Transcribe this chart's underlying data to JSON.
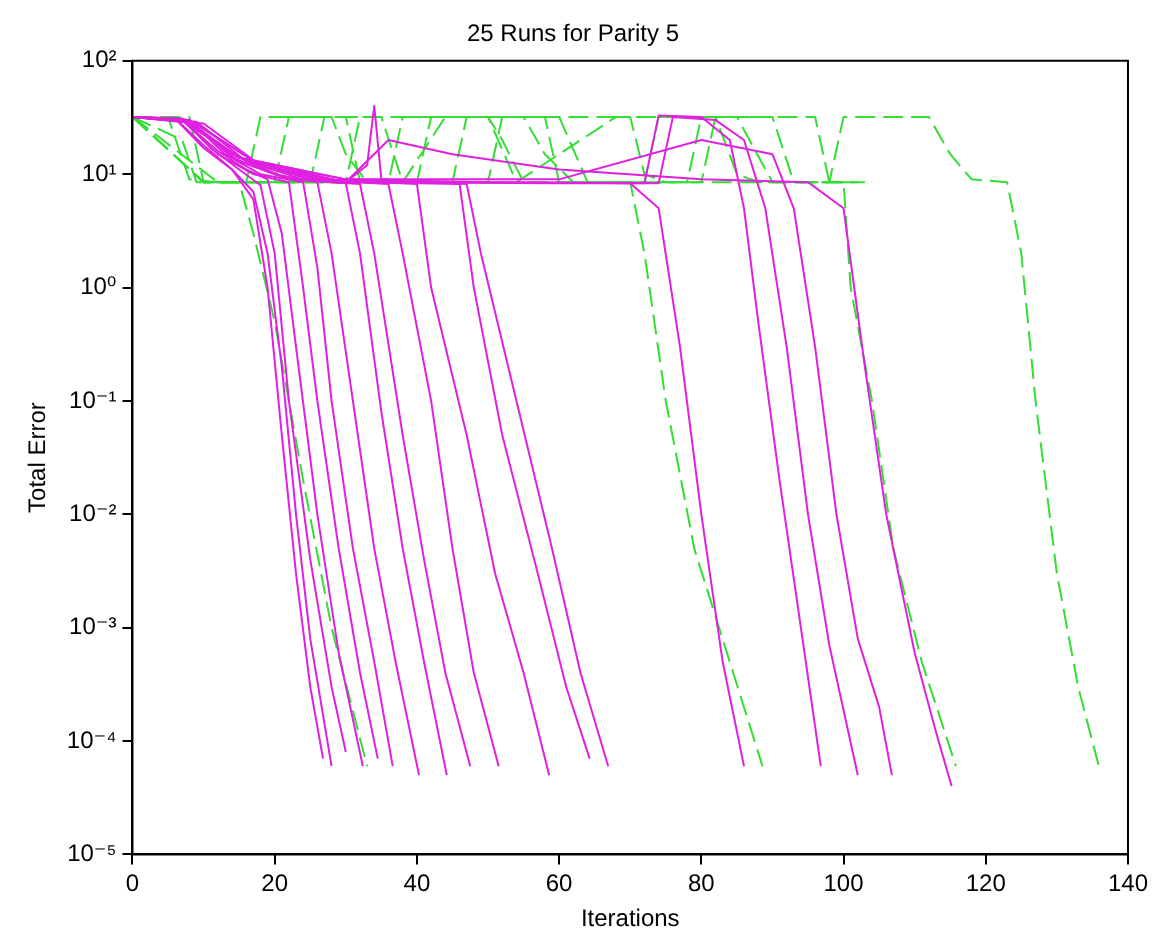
{
  "chart_data": {
    "type": "line",
    "title": "25 Runs for Parity 5",
    "xlabel": "Iterations",
    "ylabel": "Total Error",
    "log": "y",
    "grid": false,
    "legend": false,
    "marker": "none",
    "xlim": [
      0,
      140
    ],
    "xticks": [
      0,
      20,
      40,
      60,
      80,
      100,
      120,
      140
    ],
    "ylim": [
      1e-05,
      100
    ],
    "yticks": [
      {
        "value": 1e-05,
        "label": "10⁻⁵"
      },
      {
        "value": 0.0001,
        "label": "10⁻⁴"
      },
      {
        "value": 0.001,
        "label": "10⁻³"
      },
      {
        "value": 0.01,
        "label": "10⁻²"
      },
      {
        "value": 0.1,
        "label": "10⁻¹"
      },
      {
        "value": 1,
        "label": "10⁰"
      },
      {
        "value": 10,
        "label": "10¹"
      },
      {
        "value": 100,
        "label": "10²"
      }
    ],
    "series": [
      {
        "color": "#e020e0",
        "line_style": "solid",
        "x": [
          0,
          6,
          10,
          14,
          17,
          19,
          21,
          23,
          25,
          26.8
        ],
        "values": [
          32,
          31,
          18,
          11,
          6,
          1,
          0.05,
          0.003,
          0.0003,
          7e-05
        ]
      },
      {
        "color": "#e020e0",
        "line_style": "solid",
        "x": [
          0,
          6,
          10,
          14,
          17,
          19,
          21,
          23,
          25,
          28
        ],
        "values": [
          32,
          31,
          17,
          11,
          7,
          2,
          0.2,
          0.01,
          0.0008,
          6e-05
        ]
      },
      {
        "color": "#e020e0",
        "line_style": "solid",
        "x": [
          0,
          7,
          11,
          15,
          18,
          20,
          22,
          25,
          28,
          30
        ],
        "values": [
          32,
          31,
          17,
          11,
          8,
          2,
          0.1,
          0.004,
          0.0003,
          8e-05
        ]
      },
      {
        "color": "#e020e0",
        "line_style": "solid",
        "x": [
          0,
          7,
          12,
          16,
          19,
          21,
          23,
          26,
          29,
          32.4
        ],
        "values": [
          32,
          30,
          16,
          11,
          9,
          3,
          0.3,
          0.01,
          0.0006,
          6e-05
        ]
      },
      {
        "color": "#e020e0",
        "line_style": "solid",
        "x": [
          0,
          7,
          12,
          17,
          22,
          24,
          26,
          29,
          32,
          34.5
        ],
        "values": [
          32,
          30,
          15,
          10,
          8.5,
          1,
          0.1,
          0.005,
          0.0004,
          7e-05
        ]
      },
      {
        "color": "#e020e0",
        "line_style": "solid",
        "x": [
          0,
          8,
          13,
          18,
          24,
          26,
          28,
          31,
          34,
          36.6
        ],
        "values": [
          32,
          30,
          15,
          10,
          8.5,
          1.5,
          0.1,
          0.005,
          0.0005,
          6e-05
        ]
      },
      {
        "color": "#e020e0",
        "line_style": "solid",
        "x": [
          0,
          8,
          14,
          20,
          26,
          28,
          31,
          34,
          37,
          40.3
        ],
        "values": [
          32,
          30,
          14,
          10,
          8.5,
          2,
          0.1,
          0.005,
          0.0005,
          5e-05
        ]
      },
      {
        "color": "#e020e0",
        "line_style": "solid",
        "x": [
          0,
          8,
          15,
          22,
          30,
          32,
          35,
          38,
          41,
          44.2
        ],
        "values": [
          32,
          29,
          14,
          9,
          8.3,
          2,
          0.08,
          0.005,
          0.0005,
          5e-05
        ]
      },
      {
        "color": "#e020e0",
        "line_style": "solid",
        "x": [
          0,
          8,
          15,
          22,
          32,
          34,
          38,
          41,
          44,
          47.5
        ],
        "values": [
          32,
          29,
          13,
          9,
          8.2,
          2,
          0.05,
          0.004,
          0.0004,
          6e-05
        ]
      },
      {
        "color": "#e020e0",
        "line_style": "solid",
        "x": [
          0,
          9,
          16,
          24,
          36,
          38,
          42,
          45,
          48,
          51.5
        ],
        "values": [
          32,
          29,
          13,
          9,
          8.2,
          2,
          0.1,
          0.005,
          0.0004,
          6e-05
        ]
      },
      {
        "color": "#e020e0",
        "line_style": "solid",
        "x": [
          0,
          9,
          17,
          26,
          40,
          42,
          47,
          51,
          55,
          58.6
        ],
        "values": [
          32,
          28,
          13,
          9,
          8.2,
          1,
          0.05,
          0.003,
          0.0004,
          5e-05
        ]
      },
      {
        "color": "#e020e0",
        "line_style": "solid",
        "x": [
          0,
          10,
          18,
          28,
          46,
          48,
          52,
          57,
          61,
          64.3
        ],
        "values": [
          32,
          28,
          12,
          8.6,
          8.2,
          1,
          0.05,
          0.003,
          0.0003,
          7e-05
        ]
      },
      {
        "color": "#e020e0",
        "line_style": "solid",
        "x": [
          0,
          8,
          18,
          30,
          33,
          34,
          35,
          47,
          49,
          54,
          59,
          63,
          66.9
        ],
        "values": [
          32,
          30,
          12,
          8.5,
          12,
          40,
          9,
          8.2,
          2,
          0.1,
          0.005,
          0.0004,
          6e-05
        ]
      },
      {
        "color": "#e020e0",
        "line_style": "solid",
        "x": [
          0,
          7,
          15,
          30,
          50,
          70,
          74,
          77,
          80,
          83,
          86
        ],
        "values": [
          32,
          30,
          14,
          9,
          8.5,
          8.3,
          5,
          0.3,
          0.01,
          0.0005,
          6e-05
        ]
      },
      {
        "color": "#e020e0",
        "line_style": "solid",
        "x": [
          0,
          7,
          15,
          25,
          40,
          60,
          72,
          74,
          80,
          84,
          86,
          88,
          91,
          94,
          96.8
        ],
        "values": [
          32,
          30,
          14,
          9,
          8.5,
          8.3,
          8.3,
          33,
          32,
          20,
          5,
          0.5,
          0.02,
          0.001,
          6e-05
        ]
      },
      {
        "color": "#e020e0",
        "line_style": "solid",
        "x": [
          0,
          7,
          15,
          25,
          40,
          74,
          76,
          82,
          86,
          89,
          92,
          95,
          98,
          102
        ],
        "values": [
          32,
          30,
          14,
          9,
          8.5,
          8.3,
          32,
          30,
          20,
          5,
          0.3,
          0.01,
          0.0007,
          5e-05
        ]
      },
      {
        "color": "#e020e0",
        "line_style": "solid",
        "x": [
          0,
          7,
          15,
          30,
          60,
          80,
          90,
          93,
          96,
          99,
          102,
          105,
          106.8
        ],
        "values": [
          32,
          30,
          14,
          9,
          9,
          20,
          15,
          5,
          0.3,
          0.01,
          0.0008,
          0.0002,
          5e-05
        ]
      },
      {
        "color": "#e020e0",
        "line_style": "solid",
        "x": [
          0,
          7,
          15,
          30,
          36,
          45,
          60,
          80,
          95,
          100,
          103,
          106,
          110,
          113,
          115.2
        ],
        "values": [
          32,
          30,
          14,
          8.5,
          20,
          15,
          11,
          9,
          8.5,
          5,
          0.2,
          0.01,
          0.0006,
          0.00012,
          4e-05
        ]
      },
      {
        "color": "#33dd33",
        "line_style": "dashed",
        "x": [
          0,
          8,
          10,
          15,
          17,
          20,
          24,
          28,
          33
        ],
        "values": [
          32,
          32,
          8.5,
          8.5,
          3,
          0.5,
          0.02,
          0.001,
          6e-05
        ]
      },
      {
        "color": "#33dd33",
        "line_style": "dashed",
        "x": [
          0,
          10,
          20,
          22,
          30,
          32,
          45,
          47,
          58,
          60,
          70,
          72,
          75,
          79,
          84,
          88.6
        ],
        "values": [
          32,
          8.5,
          8.5,
          32,
          32,
          8.5,
          8.5,
          32,
          32,
          8.5,
          8.5,
          2,
          0.1,
          0.005,
          0.0005,
          6e-05
        ]
      },
      {
        "color": "#33dd33",
        "line_style": "dashed",
        "x": [
          0,
          10,
          30,
          32,
          50,
          54,
          68,
          85,
          90,
          100,
          101,
          104,
          107,
          111,
          115.8
        ],
        "values": [
          32,
          8.5,
          8.5,
          32,
          32,
          8.5,
          32,
          32,
          8.5,
          8.5,
          1,
          0.1,
          0.005,
          0.0005,
          6e-05
        ]
      },
      {
        "color": "#33dd33",
        "line_style": "dashed",
        "x": [
          0,
          10,
          40,
          42,
          60,
          64,
          98,
          100,
          112,
          115,
          118,
          123,
          125,
          127,
          130,
          133,
          135.9
        ],
        "values": [
          32,
          8.5,
          8.5,
          32,
          32,
          8.5,
          8.5,
          32,
          32,
          15,
          9,
          8.5,
          2,
          0.1,
          0.003,
          0.0003,
          6e-05
        ]
      },
      {
        "color": "#33dd33",
        "line_style": "dashed",
        "x": [
          0,
          12,
          25,
          27,
          35,
          38,
          44,
          55,
          58,
          62,
          78,
          80,
          90,
          93,
          103
        ],
        "values": [
          32,
          8.5,
          8.5,
          32,
          32,
          8.5,
          32,
          32,
          15,
          8.5,
          8.5,
          32,
          32,
          8.5,
          8.5
        ]
      },
      {
        "color": "#33dd33",
        "line_style": "dashed",
        "x": [
          0,
          5,
          8,
          12,
          36,
          38,
          50,
          52,
          55,
          72,
          74,
          82,
          85,
          88,
          100
        ],
        "values": [
          32,
          32,
          9,
          8.5,
          8.5,
          32,
          32,
          20,
          8.5,
          8.5,
          32,
          32,
          10,
          8.5,
          8.5
        ]
      },
      {
        "color": "#33dd33",
        "line_style": "dashed",
        "x": [
          0,
          7,
          9,
          16,
          18,
          28,
          30,
          33,
          50,
          52,
          70,
          72,
          75,
          80,
          82,
          96,
          98,
          102
        ],
        "values": [
          32,
          20,
          8.5,
          8.5,
          32,
          32,
          15,
          8.5,
          8.5,
          32,
          32,
          10,
          8.5,
          8.5,
          32,
          32,
          8.5,
          8.5
        ]
      }
    ]
  }
}
